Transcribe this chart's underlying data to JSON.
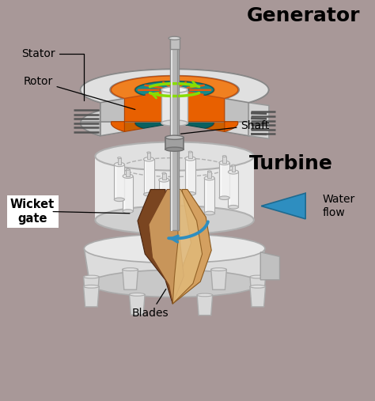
{
  "bg_color": "#A89898",
  "title_generator": "Generator",
  "title_turbine": "Turbine",
  "label_stator": "Stator",
  "label_rotor": "Rotor",
  "label_shaft": "Shaft",
  "label_wicket_gate": "Wicket\ngate",
  "label_blades": "Blades",
  "label_water_flow": "Water\nflow",
  "fig_width": 4.74,
  "fig_height": 5.07,
  "dpi": 100
}
